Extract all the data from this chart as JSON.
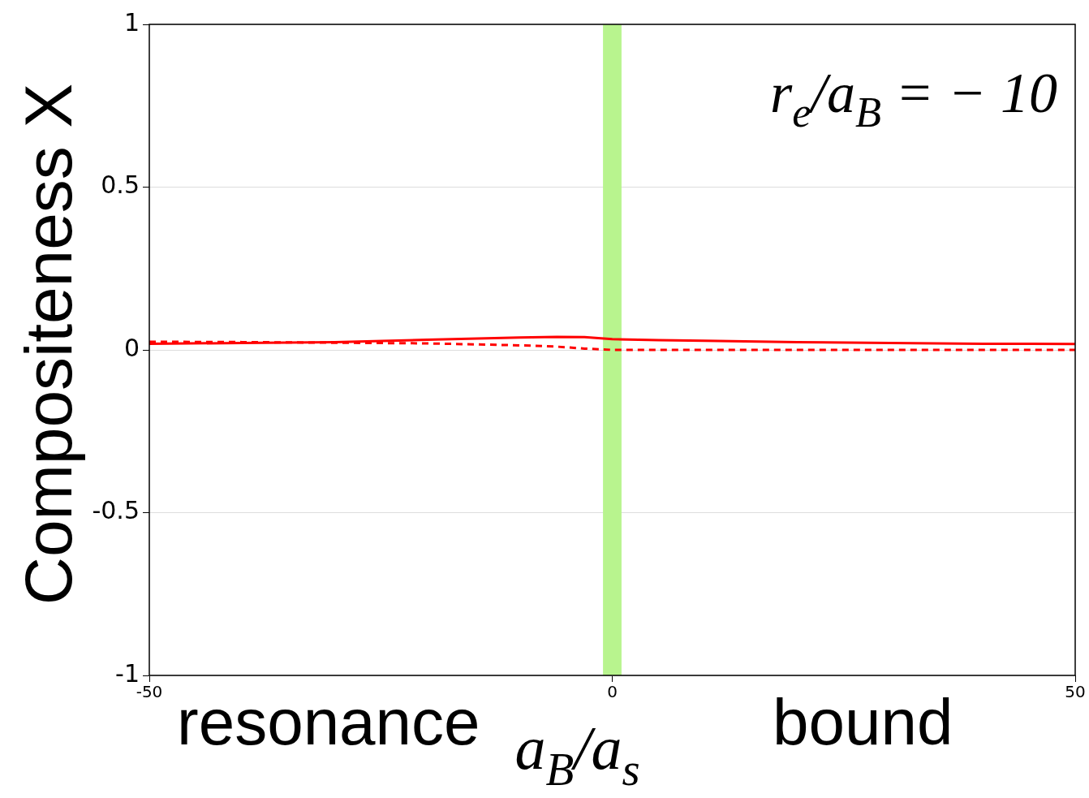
{
  "chart_data": {
    "type": "line",
    "xlabel": "a$_{B}$/a$_{s}$",
    "ylabel": "Compositeness X",
    "annotations": [
      "r$_{e}$/a$_{B}$ = − 10",
      "resonance",
      "bound"
    ],
    "series": [
      {
        "color": "#ff0000",
        "line_style": "solid",
        "x": [
          -50,
          -40,
          -30,
          -20,
          -10,
          -6,
          -3,
          0,
          5,
          10,
          20,
          30,
          40,
          50
        ],
        "values": [
          0.019,
          0.021,
          0.024,
          0.031,
          0.038,
          0.04,
          0.039,
          0.033,
          0.03,
          0.028,
          0.024,
          0.021,
          0.019,
          0.018
        ]
      },
      {
        "color": "#ff0000",
        "line_style": "dashed",
        "x": [
          -50,
          -40,
          -30,
          -20,
          -10,
          -6,
          -3,
          0,
          10,
          50
        ],
        "values": [
          0.025,
          0.024,
          0.022,
          0.02,
          0.014,
          0.01,
          0.004,
          0,
          0,
          0
        ]
      }
    ],
    "bands": [
      {
        "axis": "x",
        "from": -1,
        "to": 1,
        "color": "#b8f48e"
      }
    ],
    "xlim": [
      -50,
      50
    ],
    "xticks": [
      -50,
      0,
      50
    ],
    "ylim": [
      -1,
      1
    ],
    "yticks": [
      -1,
      -0.5,
      0,
      0.5,
      1
    ],
    "grid": "y",
    "legend": false
  }
}
